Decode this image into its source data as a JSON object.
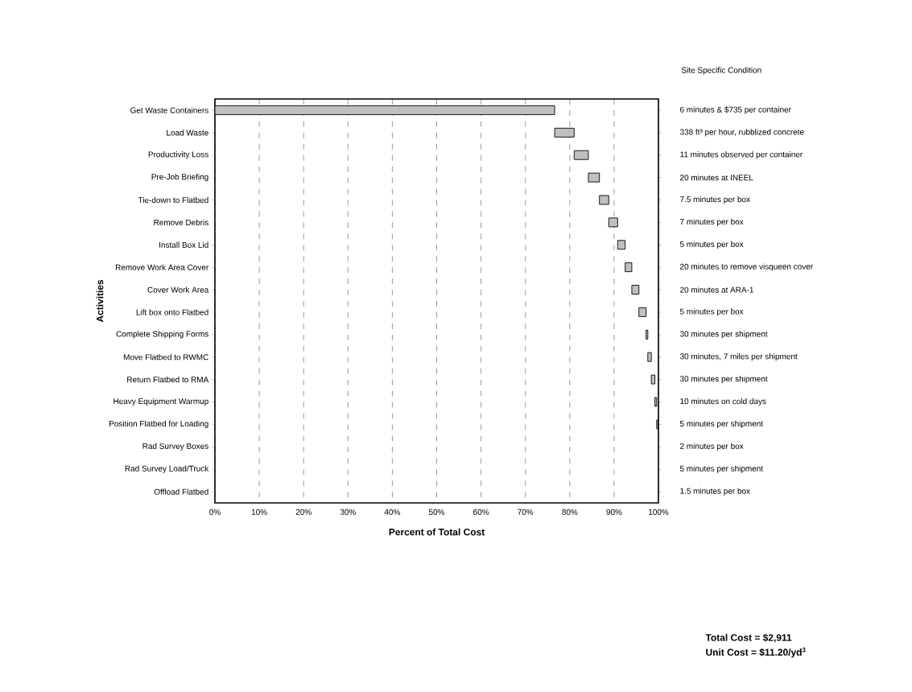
{
  "chart_data": {
    "type": "bar",
    "orientation": "horizontal",
    "xlabel": "Percent of Total Cost",
    "ylabel": "Activities",
    "categories": [
      "Get Waste Containers",
      "Load Waste",
      "Productivity Loss",
      "Pre-Job Briefing",
      "Tie-down to Flatbed",
      "Remove Debris",
      "Install Box Lid",
      "Remove Work Area Cover",
      "Cover Work Area",
      "Lift box onto Flatbed",
      "Complete Shipping Forms",
      "Move Flatbed to RWMC",
      "Return Flatbed to RMA",
      "Heavy Equipment Warmup",
      "Position Flatbed for Loading",
      "Rad Survey Boxes",
      "Rad Survey Load/Truck",
      "Offload Flatbed"
    ],
    "values": [
      76.6,
      4.4,
      3.2,
      2.5,
      2.1,
      2.0,
      1.7,
      1.5,
      1.6,
      1.6,
      0.4,
      0.8,
      0.8,
      0.4,
      0.3,
      null,
      null,
      null
    ],
    "base": [
      0,
      76.6,
      81.0,
      84.2,
      86.7,
      88.8,
      90.8,
      92.5,
      94.0,
      95.6,
      97.2,
      97.6,
      98.4,
      99.2,
      99.6,
      null,
      null,
      null
    ],
    "color": "#c0c0c0",
    "xlim": [
      0,
      100
    ],
    "xticks": [
      {
        "value": 0,
        "label": "0%"
      },
      {
        "value": 10,
        "label": "10%"
      },
      {
        "value": 20,
        "label": "20%"
      },
      {
        "value": 30,
        "label": "30%"
      },
      {
        "value": 40,
        "label": "40%"
      },
      {
        "value": 50,
        "label": "50%"
      },
      {
        "value": 60,
        "label": "60%"
      },
      {
        "value": 70,
        "label": "70%"
      },
      {
        "value": 80,
        "label": "80%"
      },
      {
        "value": 90,
        "label": "90%"
      },
      {
        "value": 100,
        "label": "100%"
      }
    ],
    "grid": "x",
    "annotations": [
      "Site Specific Condition",
      "6 minutes & $735 per container",
      "338 ft³ per hour, rubblized concrete",
      "11 minutes observed per container",
      "20  minutes at INEEL",
      "7.5 minutes per box",
      "7 minutes per box",
      "5 minutes  per box",
      "20 minutes to remove visqueen cover",
      "20 minutes at ARA-1",
      "5 minutes per box",
      "30 minutes per shipment",
      "30 minutes, 7 miles per shipment",
      "30 minutes per shipment",
      "10 minutes on cold days",
      "5 minutes per shipment",
      "2 minutes per box",
      "5 minutes per shipment",
      "1.5 minutes per box",
      "**Total Cost = $2,911**",
      "**Unit Cost = $11.20/yd$^{3}$**"
    ]
  }
}
